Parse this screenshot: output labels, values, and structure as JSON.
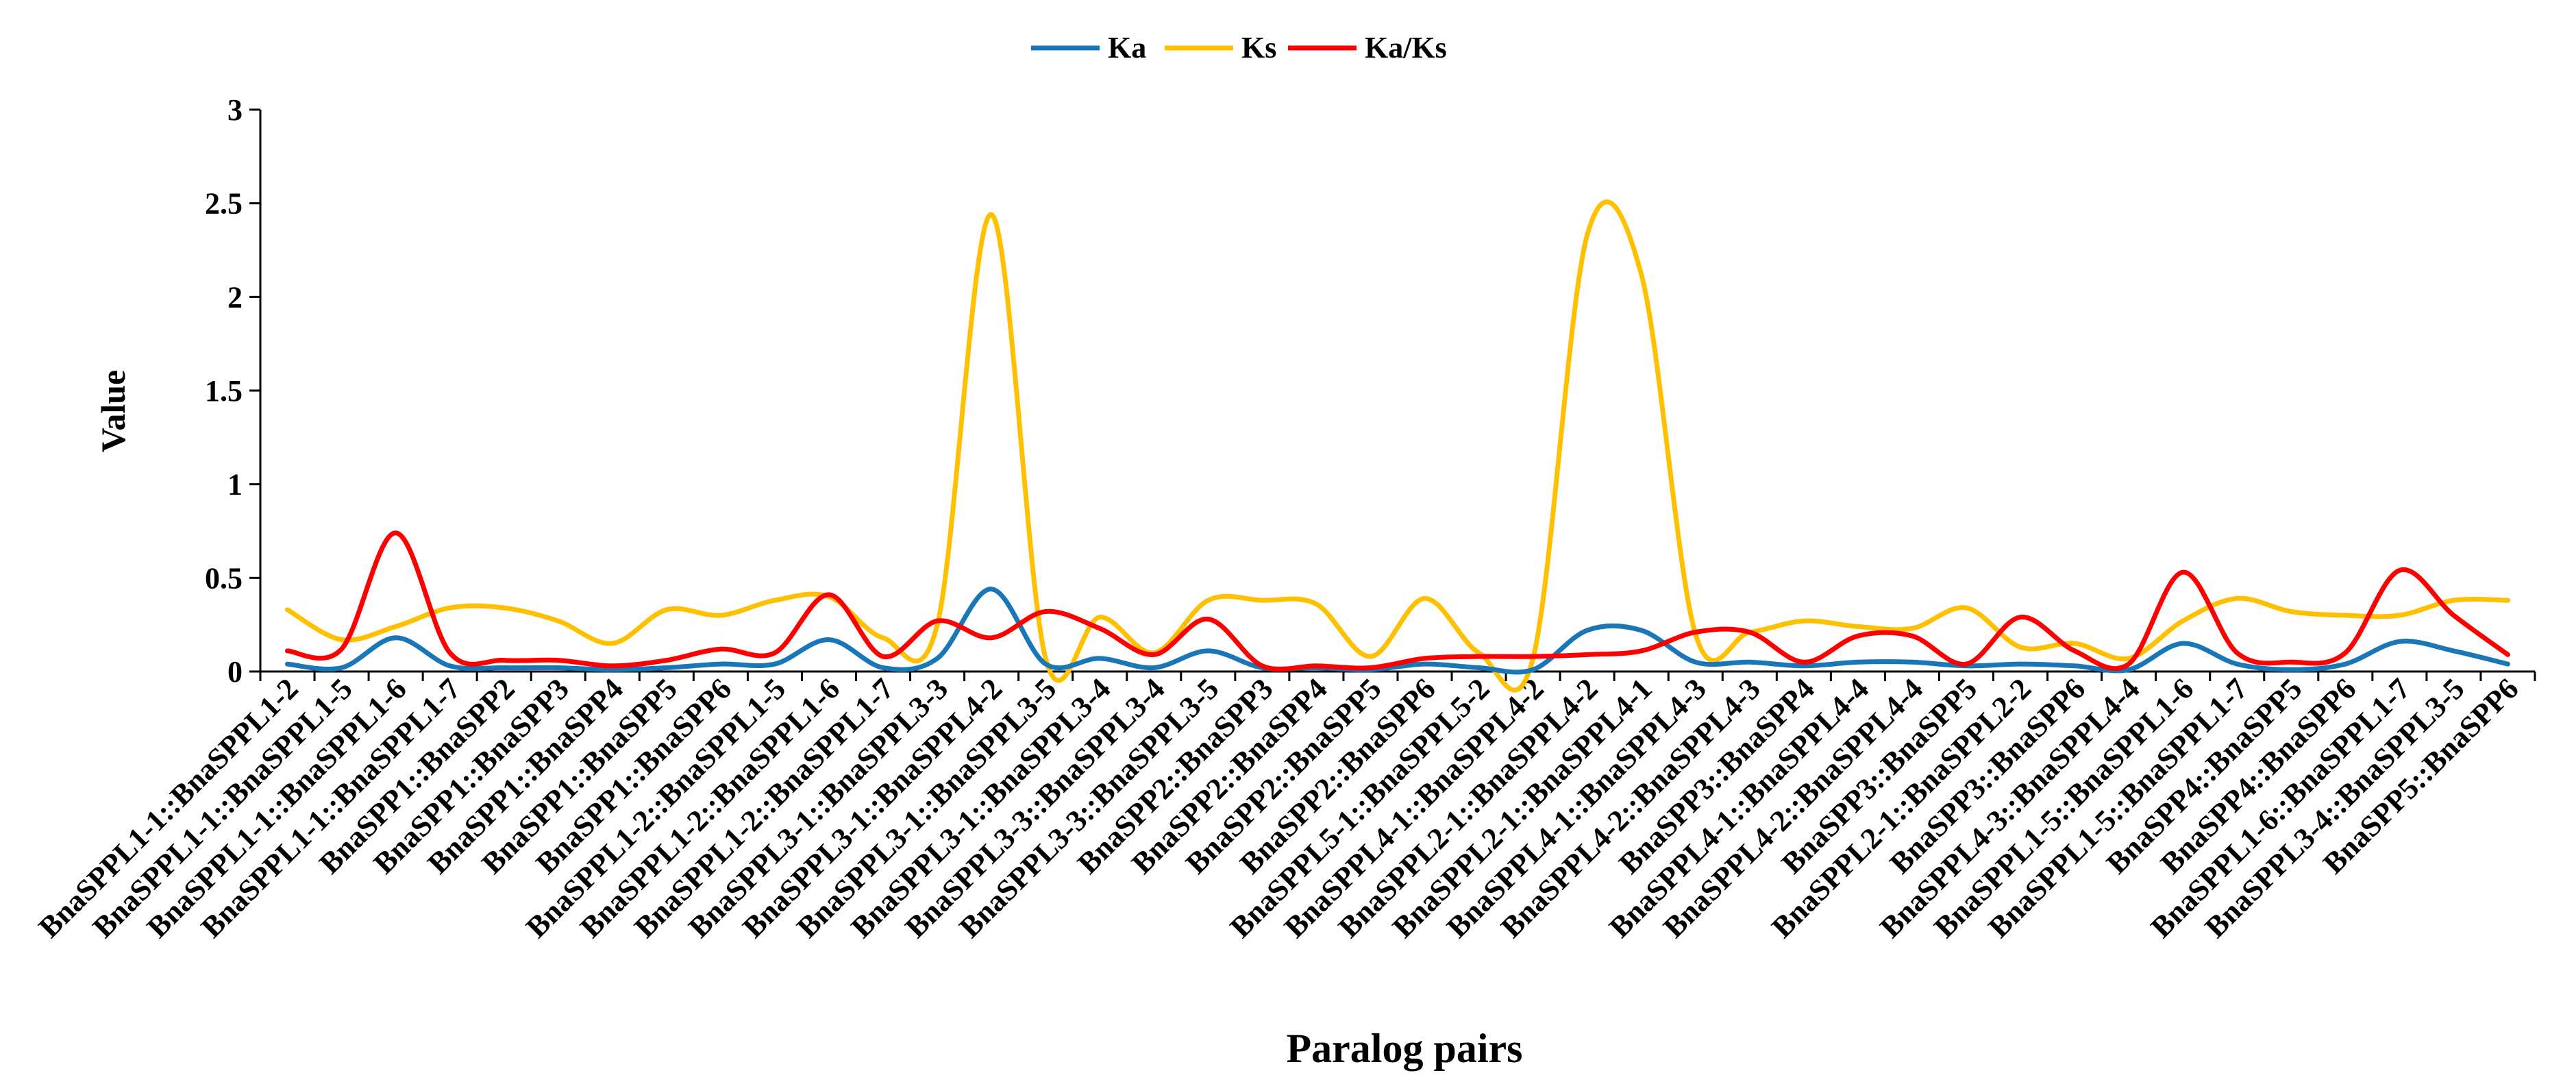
{
  "chart_data": {
    "type": "line",
    "smooth": true,
    "title": "",
    "xlabel": "Paralog pairs",
    "ylabel": "Value",
    "ylim": [
      0,
      3
    ],
    "yticks": [
      0,
      0.5,
      1,
      1.5,
      2,
      2.5,
      3
    ],
    "ytick_labels": [
      "0",
      "0.5",
      "1",
      "1.5",
      "2",
      "2.5",
      "3"
    ],
    "grid": false,
    "legend_position": "top-center",
    "categories": [
      "BnaSPPL1-1::BnaSPPL1-2",
      "BnaSPPL1-1::BnaSPPL1-5",
      "BnaSPPL1-1::BnaSPPL1-6",
      "BnaSPPL1-1::BnaSPPL1-7",
      "BnaSPP1::BnaSPP2",
      "BnaSPP1::BnaSPP3",
      "BnaSPP1::BnaSPP4",
      "BnaSPP1::BnaSPP5",
      "BnaSPP1::BnaSPP6",
      "BnaSPPL1-2::BnaSPPL1-5",
      "BnaSPPL1-2::BnaSPPL1-6",
      "BnaSPPL1-2::BnaSPPL1-7",
      "BnaSPPL3-1::BnaSPPL3-3",
      "BnaSPPL3-1::BnaSPPL4-2",
      "BnaSPPL3-1::BnaSPPL3-5",
      "BnaSPPL3-1::BnaSPPL3-4",
      "BnaSPPL3-3::BnaSPPL3-4",
      "BnaSPPL3-3::BnaSPPL3-5",
      "BnaSPP2::BnaSPP3",
      "BnaSPP2::BnaSPP4",
      "BnaSPP2::BnaSPP5",
      "BnaSPP2::BnaSPP6",
      "BnaSPPL5-1::BnaSPPL5-2",
      "BnaSPPL4-1::BnaSPPL4-2",
      "BnaSPPL2-1::BnaSPPL4-2",
      "BnaSPPL2-1::BnaSPPL4-1",
      "BnaSPPL4-1::BnaSPPL4-3",
      "BnaSPPL4-2::BnaSPPL4-3",
      "BnaSPP3::BnaSPP4",
      "BnaSPPL4-1::BnaSPPL4-4",
      "BnaSPPL4-2::BnaSPPL4-4",
      "BnaSPP3::BnaSPP5",
      "BnaSPPL2-1::BnaSPPL2-2",
      "BnaSPP3::BnaSPP6",
      "BnaSPPL4-3::BnaSPPL4-4",
      "BnaSPPL1-5::BnaSPPL1-6",
      "BnaSPPL1-5::BnaSPPL1-7",
      "BnaSPP4::BnaSPP5",
      "BnaSPP4::BnaSPP6",
      "BnaSPPL1-6::BnaSPPL1-7",
      "BnaSPPL3-4::BnaSPPL3-5",
      "BnaSPP5::BnaSPP6"
    ],
    "series": [
      {
        "name": "Ka",
        "color": "#1a77b7",
        "values": [
          0.04,
          0.02,
          0.18,
          0.03,
          0.02,
          0.02,
          0.01,
          0.02,
          0.04,
          0.04,
          0.17,
          0.02,
          0.07,
          0.44,
          0.04,
          0.07,
          0.02,
          0.11,
          0.02,
          0.02,
          0.01,
          0.04,
          0.02,
          0.01,
          0.22,
          0.22,
          0.05,
          0.05,
          0.03,
          0.05,
          0.05,
          0.03,
          0.04,
          0.03,
          0.01,
          0.15,
          0.04,
          0.01,
          0.04,
          0.16,
          0.11,
          0.04
        ]
      },
      {
        "name": "Ks",
        "color": "#ffc000",
        "values": [
          0.33,
          0.17,
          0.24,
          0.34,
          0.34,
          0.27,
          0.15,
          0.33,
          0.3,
          0.38,
          0.4,
          0.18,
          0.25,
          2.44,
          0.07,
          0.29,
          0.1,
          0.38,
          0.38,
          0.36,
          0.08,
          0.39,
          0.1,
          0.07,
          2.33,
          2.12,
          0.2,
          0.21,
          0.27,
          0.24,
          0.23,
          0.34,
          0.13,
          0.15,
          0.07,
          0.27,
          0.39,
          0.32,
          0.3,
          0.3,
          0.38,
          0.38
        ]
      },
      {
        "name": "Ka/Ks",
        "color": "#ff0000",
        "values": [
          0.11,
          0.12,
          0.74,
          0.1,
          0.06,
          0.06,
          0.03,
          0.06,
          0.12,
          0.1,
          0.41,
          0.08,
          0.27,
          0.18,
          0.32,
          0.23,
          0.09,
          0.28,
          0.03,
          0.03,
          0.02,
          0.07,
          0.08,
          0.08,
          0.09,
          0.11,
          0.21,
          0.21,
          0.05,
          0.19,
          0.19,
          0.04,
          0.29,
          0.11,
          0.04,
          0.53,
          0.1,
          0.05,
          0.1,
          0.54,
          0.3,
          0.09
        ]
      }
    ]
  }
}
